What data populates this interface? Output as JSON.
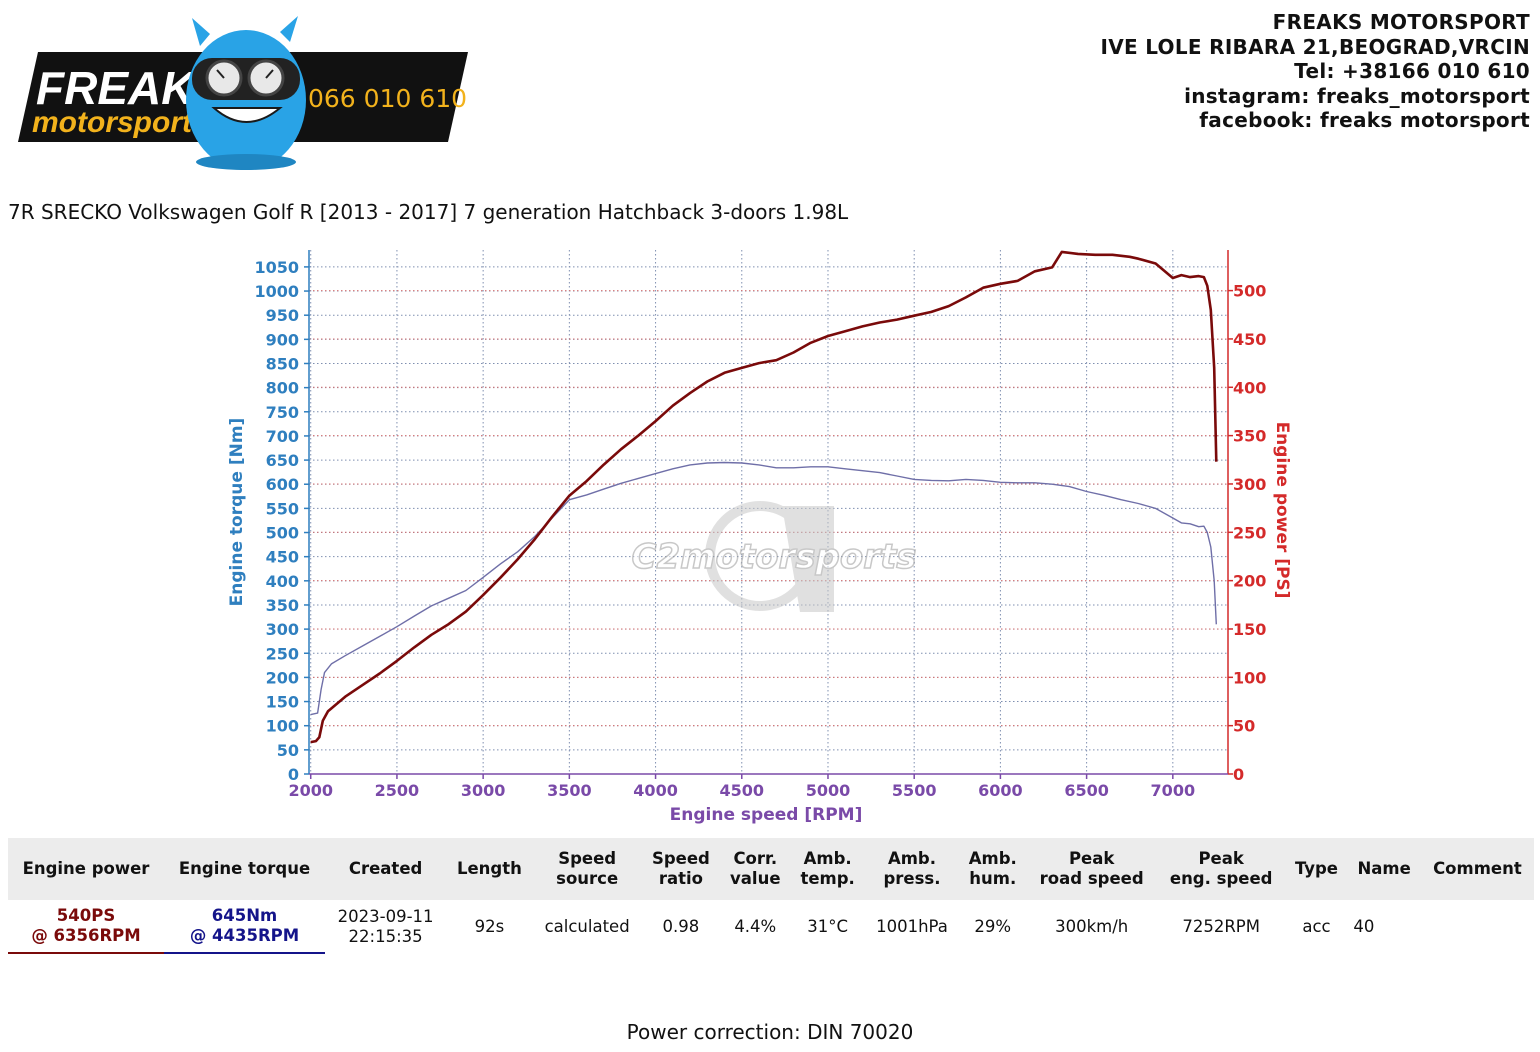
{
  "brand": {
    "logo_word_1": "FREAKS",
    "logo_word_2": "motorsport",
    "logo_phone": "066 010 610",
    "colors": {
      "banner": "#111111",
      "monster": "#29a3e6",
      "accent": "#f2b21c"
    }
  },
  "contact": {
    "line_1": "FREAKS MOTORSPORT",
    "line_2": "IVE LOLE RIBARA 21,BEOGRAD,VRCIN",
    "line_3": "Tel: +38166 010 610",
    "line_4": "instagram: freaks_motorsport",
    "line_5": "facebook: freaks motorsport"
  },
  "car_title": "7R SRECKO Volkswagen Golf R [2013 - 2017] 7 generation Hatchback 3-doors 1.98L",
  "watermark": "C2motorsports",
  "chart_data": {
    "type": "line",
    "title": "",
    "xlabel": "Engine speed [RPM]",
    "ylabel": "Engine torque [Nm]",
    "y2label": "Engine power [PS]",
    "xlim": [
      1990,
      7320
    ],
    "ylim": [
      0,
      1085
    ],
    "y2lim": [
      0,
      542
    ],
    "x_ticks": [
      2000,
      2500,
      3000,
      3500,
      4000,
      4500,
      5000,
      5500,
      6000,
      6500,
      7000
    ],
    "y_ticks": [
      0,
      50,
      100,
      150,
      200,
      250,
      300,
      350,
      400,
      450,
      500,
      550,
      600,
      650,
      700,
      750,
      800,
      850,
      900,
      950,
      1000,
      1050
    ],
    "y2_ticks": [
      0,
      50,
      100,
      150,
      200,
      250,
      300,
      350,
      400,
      450,
      500
    ],
    "grid": true,
    "colors": {
      "torque": "#6f6fa8",
      "power": "#7a0a0a",
      "torque_axis": "#2f7fbf",
      "power_axis": "#d42a2a",
      "x_axis": "#7a4aa8"
    },
    "series": [
      {
        "name": "Engine torque",
        "axis": "left",
        "points": [
          [
            2000,
            123
          ],
          [
            2040,
            126
          ],
          [
            2060,
            175
          ],
          [
            2080,
            210
          ],
          [
            2120,
            228
          ],
          [
            2200,
            245
          ],
          [
            2300,
            265
          ],
          [
            2400,
            285
          ],
          [
            2500,
            305
          ],
          [
            2600,
            327
          ],
          [
            2700,
            348
          ],
          [
            2800,
            364
          ],
          [
            2900,
            380
          ],
          [
            3000,
            407
          ],
          [
            3100,
            435
          ],
          [
            3200,
            460
          ],
          [
            3300,
            492
          ],
          [
            3400,
            530
          ],
          [
            3500,
            568
          ],
          [
            3600,
            578
          ],
          [
            3700,
            590
          ],
          [
            3800,
            602
          ],
          [
            3900,
            612
          ],
          [
            4000,
            622
          ],
          [
            4100,
            632
          ],
          [
            4200,
            640
          ],
          [
            4300,
            644
          ],
          [
            4400,
            645
          ],
          [
            4500,
            644
          ],
          [
            4600,
            640
          ],
          [
            4700,
            634
          ],
          [
            4800,
            634
          ],
          [
            4900,
            636
          ],
          [
            5000,
            636
          ],
          [
            5100,
            632
          ],
          [
            5200,
            628
          ],
          [
            5300,
            624
          ],
          [
            5400,
            617
          ],
          [
            5500,
            610
          ],
          [
            5600,
            608
          ],
          [
            5700,
            607
          ],
          [
            5800,
            610
          ],
          [
            5900,
            608
          ],
          [
            6000,
            604
          ],
          [
            6100,
            603
          ],
          [
            6200,
            603
          ],
          [
            6300,
            600
          ],
          [
            6400,
            595
          ],
          [
            6500,
            585
          ],
          [
            6600,
            577
          ],
          [
            6700,
            568
          ],
          [
            6800,
            560
          ],
          [
            6900,
            550
          ],
          [
            7000,
            530
          ],
          [
            7050,
            520
          ],
          [
            7100,
            518
          ],
          [
            7150,
            512
          ],
          [
            7180,
            513
          ],
          [
            7200,
            500
          ],
          [
            7220,
            470
          ],
          [
            7240,
            400
          ],
          [
            7252,
            310
          ]
        ]
      },
      {
        "name": "Engine power",
        "axis": "right",
        "points": [
          [
            2000,
            33
          ],
          [
            2030,
            34
          ],
          [
            2050,
            38
          ],
          [
            2070,
            55
          ],
          [
            2100,
            65
          ],
          [
            2200,
            80
          ],
          [
            2300,
            92
          ],
          [
            2400,
            104
          ],
          [
            2500,
            117
          ],
          [
            2600,
            131
          ],
          [
            2700,
            144
          ],
          [
            2800,
            155
          ],
          [
            2900,
            168
          ],
          [
            3000,
            185
          ],
          [
            3100,
            203
          ],
          [
            3200,
            222
          ],
          [
            3300,
            243
          ],
          [
            3400,
            266
          ],
          [
            3500,
            288
          ],
          [
            3600,
            303
          ],
          [
            3700,
            320
          ],
          [
            3800,
            336
          ],
          [
            3900,
            350
          ],
          [
            4000,
            365
          ],
          [
            4100,
            381
          ],
          [
            4200,
            394
          ],
          [
            4300,
            406
          ],
          [
            4400,
            415
          ],
          [
            4500,
            420
          ],
          [
            4600,
            425
          ],
          [
            4700,
            428
          ],
          [
            4800,
            436
          ],
          [
            4900,
            446
          ],
          [
            5000,
            453
          ],
          [
            5100,
            458
          ],
          [
            5200,
            463
          ],
          [
            5300,
            467
          ],
          [
            5400,
            470
          ],
          [
            5500,
            474
          ],
          [
            5600,
            478
          ],
          [
            5700,
            484
          ],
          [
            5800,
            493
          ],
          [
            5900,
            503
          ],
          [
            6000,
            507
          ],
          [
            6100,
            510
          ],
          [
            6200,
            520
          ],
          [
            6300,
            524
          ],
          [
            6356,
            540
          ],
          [
            6450,
            538
          ],
          [
            6550,
            537
          ],
          [
            6650,
            537
          ],
          [
            6750,
            535
          ],
          [
            6800,
            533
          ],
          [
            6900,
            528
          ],
          [
            7000,
            513
          ],
          [
            7050,
            516
          ],
          [
            7100,
            514
          ],
          [
            7150,
            515
          ],
          [
            7180,
            514
          ],
          [
            7200,
            505
          ],
          [
            7220,
            480
          ],
          [
            7240,
            420
          ],
          [
            7252,
            323
          ]
        ]
      }
    ]
  },
  "table": {
    "headers": {
      "power": "Engine power",
      "torque": "Engine torque",
      "created": "Created",
      "length": "Length",
      "speed_source_1": "Speed",
      "speed_source_2": "source",
      "speed_ratio_1": "Speed",
      "speed_ratio_2": "ratio",
      "corr_1": "Corr.",
      "corr_2": "value",
      "temp_1": "Amb.",
      "temp_2": "temp.",
      "press_1": "Amb.",
      "press_2": "press.",
      "hum_1": "Amb.",
      "hum_2": "hum.",
      "prs_1": "Peak",
      "prs_2": "road speed",
      "pes_1": "Peak",
      "pes_2": "eng. speed",
      "type": "Type",
      "name": "Name",
      "comment": "Comment"
    },
    "row": {
      "power_value": "540PS",
      "power_rpm": "@ 6356RPM",
      "torque_value": "645Nm",
      "torque_rpm": "@ 4435RPM",
      "date": "2023-09-11",
      "time": "22:15:35",
      "length": "92s",
      "speed_source": "calculated",
      "speed_ratio": "0.98",
      "corr_value": "4.4%",
      "amb_temp": "31°C",
      "amb_press": "1001hPa",
      "amb_hum": "29%",
      "peak_road_speed": "300km/h",
      "peak_eng_speed": "7252RPM",
      "type": "acc",
      "name": "40",
      "comment": ""
    }
  },
  "footer": {
    "correction": "Power correction: DIN 70020"
  }
}
